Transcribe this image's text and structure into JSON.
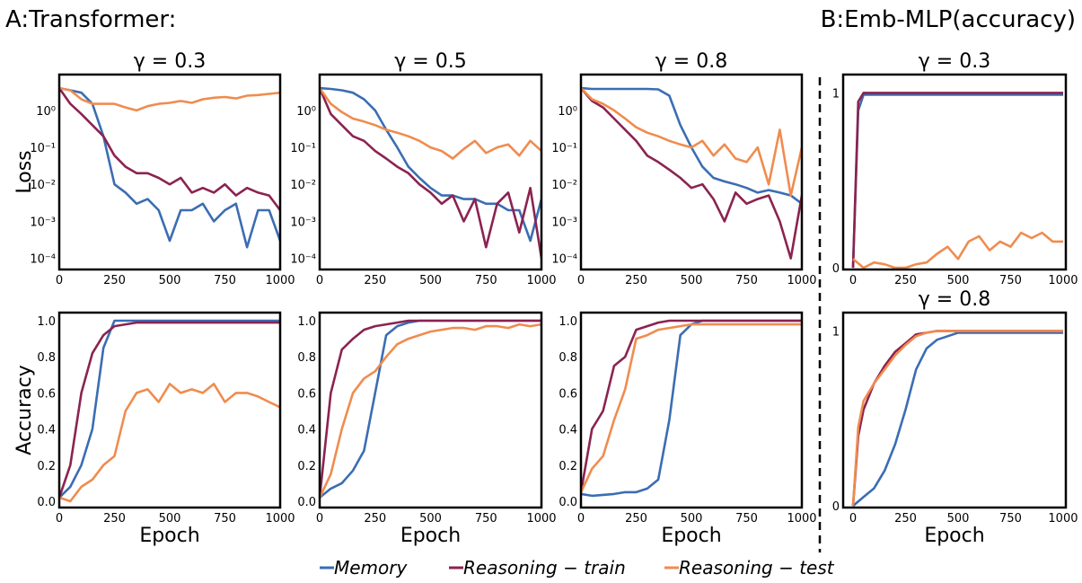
{
  "headers": {
    "a": "A:Transformer:",
    "b": "B:Emb-MLP(accuracy)"
  },
  "colors": {
    "Memory": "#3b6db3",
    "Reasoning − train": "#8b2350",
    "Reasoning − test": "#ef8c4f"
  },
  "legend": [
    "Memory",
    "Reasoning − train",
    "Reasoning − test"
  ],
  "chart_data": [
    {
      "type": "line",
      "title": "γ = 0.3",
      "ylabel": "Loss",
      "xlabel": "",
      "yscale": "log",
      "xlim": [
        0,
        1000
      ],
      "ylim": [
        5e-05,
        9.3
      ],
      "xticks": [
        "0",
        "250",
        "500",
        "750",
        "1000"
      ],
      "yticks": [
        {
          "v": 1,
          "label": "10⁰"
        },
        {
          "v": 0.1,
          "label": "10⁻¹"
        },
        {
          "v": 0.01,
          "label": "10⁻²"
        },
        {
          "v": 0.001,
          "label": "10⁻³"
        },
        {
          "v": 0.0001,
          "label": "10⁻⁴"
        }
      ],
      "series": [
        {
          "name": "Memory",
          "y": [
            4,
            3.5,
            3,
            1.5,
            0.2,
            0.01,
            0.006,
            0.003,
            0.004,
            0.002,
            0.0003,
            0.002,
            0.002,
            0.003,
            0.001,
            0.002,
            0.003,
            0.0002,
            0.002,
            0.002,
            0.0003
          ]
        },
        {
          "name": "Reasoning − train",
          "y": [
            4,
            1.5,
            0.8,
            0.4,
            0.2,
            0.06,
            0.03,
            0.02,
            0.02,
            0.015,
            0.01,
            0.015,
            0.006,
            0.008,
            0.006,
            0.01,
            0.005,
            0.008,
            0.006,
            0.005,
            0.002
          ]
        },
        {
          "name": "Reasoning − test",
          "y": [
            4,
            3.5,
            2,
            1.5,
            1.5,
            1.5,
            1.2,
            1.0,
            1.3,
            1.5,
            1.6,
            1.8,
            1.6,
            2,
            2.2,
            2.3,
            2.1,
            2.5,
            2.6,
            2.8,
            3
          ]
        }
      ]
    },
    {
      "type": "line",
      "title": "γ = 0.5",
      "ylabel": "",
      "xlabel": "",
      "yscale": "log",
      "xlim": [
        0,
        1000
      ],
      "ylim": [
        5e-05,
        9.3
      ],
      "xticks": [
        "0",
        "250",
        "500",
        "750",
        "1000"
      ],
      "yticks": [
        {
          "v": 1,
          "label": "10⁰"
        },
        {
          "v": 0.1,
          "label": "10⁻¹"
        },
        {
          "v": 0.01,
          "label": "10⁻²"
        },
        {
          "v": 0.001,
          "label": "10⁻³"
        },
        {
          "v": 0.0001,
          "label": "10⁻⁴"
        }
      ],
      "series": [
        {
          "name": "Memory",
          "y": [
            4,
            3.8,
            3.5,
            3,
            2,
            1,
            0.3,
            0.1,
            0.03,
            0.015,
            0.008,
            0.005,
            0.005,
            0.004,
            0.004,
            0.003,
            0.003,
            0.002,
            0.002,
            0.0003,
            0.004
          ]
        },
        {
          "name": "Reasoning − train",
          "y": [
            4,
            0.8,
            0.4,
            0.2,
            0.15,
            0.08,
            0.05,
            0.03,
            0.02,
            0.01,
            0.006,
            0.003,
            0.005,
            0.001,
            0.004,
            0.0002,
            0.003,
            0.006,
            0.0005,
            0.008,
            0.0001
          ]
        },
        {
          "name": "Reasoning − test",
          "y": [
            4,
            1.5,
            0.9,
            0.6,
            0.5,
            0.4,
            0.3,
            0.25,
            0.2,
            0.15,
            0.1,
            0.08,
            0.05,
            0.09,
            0.15,
            0.07,
            0.1,
            0.12,
            0.06,
            0.15,
            0.08
          ]
        }
      ]
    },
    {
      "type": "line",
      "title": "γ = 0.8",
      "ylabel": "",
      "xlabel": "",
      "yscale": "log",
      "xlim": [
        0,
        1000
      ],
      "ylim": [
        5e-05,
        9.3
      ],
      "xticks": [
        "0",
        "250",
        "500",
        "750",
        "1000"
      ],
      "yticks": [
        {
          "v": 1,
          "label": "10⁰"
        },
        {
          "v": 0.1,
          "label": "10⁻¹"
        },
        {
          "v": 0.01,
          "label": "10⁻²"
        },
        {
          "v": 0.001,
          "label": "10⁻³"
        },
        {
          "v": 0.0001,
          "label": "10⁻⁴"
        }
      ],
      "series": [
        {
          "name": "Memory",
          "y": [
            4,
            3.8,
            3.8,
            3.8,
            3.8,
            3.8,
            3.8,
            3.7,
            2.5,
            0.4,
            0.1,
            0.03,
            0.015,
            0.012,
            0.01,
            0.008,
            0.006,
            0.007,
            0.006,
            0.005,
            0.003
          ]
        },
        {
          "name": "Reasoning − train",
          "y": [
            4,
            1.8,
            1.2,
            0.6,
            0.3,
            0.15,
            0.06,
            0.04,
            0.025,
            0.015,
            0.008,
            0.01,
            0.004,
            0.001,
            0.006,
            0.003,
            0.004,
            0.005,
            0.001,
            0.0001,
            0.005
          ]
        },
        {
          "name": "Reasoning − test",
          "y": [
            4,
            2,
            1.5,
            1,
            0.6,
            0.35,
            0.25,
            0.2,
            0.15,
            0.12,
            0.1,
            0.15,
            0.06,
            0.12,
            0.05,
            0.04,
            0.1,
            0.01,
            0.3,
            0.005,
            0.1
          ]
        }
      ]
    },
    {
      "type": "line",
      "title": "γ = 0.3",
      "ylabel": "",
      "xlabel": "",
      "yscale": "linear",
      "xlim": [
        -47,
        1013
      ],
      "ylim": [
        -0.01,
        1.105
      ],
      "xticks": [
        "0",
        "250",
        "500",
        "750",
        "1000"
      ],
      "yticks": [
        {
          "v": 0,
          "label": "0"
        },
        {
          "v": 1,
          "label": "1"
        }
      ],
      "series": [
        {
          "name": "Memory",
          "x": [
            0,
            25,
            50,
            100,
            200,
            300,
            400,
            500,
            600,
            700,
            800,
            900,
            1000
          ],
          "y": [
            0,
            0.9,
            0.99,
            0.99,
            0.99,
            0.99,
            0.99,
            0.99,
            0.99,
            0.99,
            0.99,
            0.99,
            0.99
          ]
        },
        {
          "name": "Reasoning − train",
          "x": [
            0,
            25,
            50,
            100,
            200,
            300,
            400,
            500,
            600,
            700,
            800,
            900,
            1000
          ],
          "y": [
            0,
            0.95,
            1,
            1,
            1,
            1,
            1,
            1,
            1,
            1,
            1,
            1,
            1
          ]
        },
        {
          "name": "Reasoning − test",
          "y": [
            0.05,
            0,
            0.03,
            0.02,
            0,
            0,
            0.02,
            0.03,
            0.08,
            0.12,
            0.05,
            0.15,
            0.18,
            0.1,
            0.15,
            0.12,
            0.2,
            0.17,
            0.2,
            0.15,
            0.15
          ]
        }
      ]
    },
    {
      "type": "line",
      "title": "",
      "ylabel": "Accuracy",
      "xlabel": "Epoch",
      "yscale": "linear",
      "xlim": [
        0,
        1000
      ],
      "ylim": [
        -0.035,
        1.045
      ],
      "xticks": [
        "0",
        "250",
        "500",
        "750",
        "1000"
      ],
      "yticks": [
        {
          "v": 0,
          "label": "0.0"
        },
        {
          "v": 0.2,
          "label": "0.2"
        },
        {
          "v": 0.4,
          "label": "0.4"
        },
        {
          "v": 0.6,
          "label": "0.6"
        },
        {
          "v": 0.8,
          "label": "0.8"
        },
        {
          "v": 1,
          "label": "1.0"
        }
      ],
      "series": [
        {
          "name": "Memory",
          "y": [
            0.02,
            0.08,
            0.2,
            0.4,
            0.85,
            1,
            1,
            1,
            1,
            1,
            1,
            1,
            1,
            1,
            1,
            1,
            1,
            1,
            1,
            1,
            1
          ]
        },
        {
          "name": "Reasoning − train",
          "y": [
            0.02,
            0.2,
            0.6,
            0.82,
            0.92,
            0.97,
            0.98,
            0.99,
            0.99,
            0.99,
            0.99,
            0.99,
            0.99,
            0.99,
            0.99,
            0.99,
            0.99,
            0.99,
            0.99,
            0.99,
            0.99
          ]
        },
        {
          "name": "Reasoning − test",
          "y": [
            0.02,
            0,
            0.08,
            0.12,
            0.2,
            0.25,
            0.5,
            0.6,
            0.62,
            0.55,
            0.65,
            0.6,
            0.62,
            0.6,
            0.65,
            0.55,
            0.6,
            0.6,
            0.58,
            0.55,
            0.52
          ]
        }
      ]
    },
    {
      "type": "line",
      "title": "",
      "ylabel": "",
      "xlabel": "Epoch",
      "yscale": "linear",
      "xlim": [
        0,
        1000
      ],
      "ylim": [
        -0.035,
        1.045
      ],
      "xticks": [
        "0",
        "250",
        "500",
        "750",
        "1000"
      ],
      "yticks": [
        {
          "v": 0,
          "label": "0.0"
        },
        {
          "v": 0.2,
          "label": "0.2"
        },
        {
          "v": 0.4,
          "label": "0.4"
        },
        {
          "v": 0.6,
          "label": "0.6"
        },
        {
          "v": 0.8,
          "label": "0.8"
        },
        {
          "v": 1,
          "label": "1.0"
        }
      ],
      "series": [
        {
          "name": "Memory",
          "y": [
            0.02,
            0.07,
            0.1,
            0.17,
            0.28,
            0.6,
            0.92,
            0.97,
            0.99,
            1,
            1,
            1,
            1,
            1,
            1,
            1,
            1,
            1,
            1,
            1,
            1
          ]
        },
        {
          "name": "Reasoning − train",
          "y": [
            0.02,
            0.6,
            0.84,
            0.9,
            0.95,
            0.97,
            0.98,
            0.99,
            1,
            1,
            1,
            1,
            1,
            1,
            1,
            1,
            1,
            1,
            1,
            1,
            1
          ]
        },
        {
          "name": "Reasoning − test",
          "y": [
            0.02,
            0.15,
            0.4,
            0.6,
            0.68,
            0.72,
            0.8,
            0.87,
            0.9,
            0.92,
            0.94,
            0.95,
            0.96,
            0.96,
            0.95,
            0.97,
            0.97,
            0.96,
            0.98,
            0.97,
            0.98
          ]
        }
      ]
    },
    {
      "type": "line",
      "title": "",
      "ylabel": "",
      "xlabel": "Epoch",
      "yscale": "linear",
      "xlim": [
        0,
        1000
      ],
      "ylim": [
        -0.035,
        1.045
      ],
      "xticks": [
        "0",
        "250",
        "500",
        "750",
        "1000"
      ],
      "yticks": [
        {
          "v": 0,
          "label": "0.0"
        },
        {
          "v": 0.2,
          "label": "0.2"
        },
        {
          "v": 0.4,
          "label": "0.4"
        },
        {
          "v": 0.6,
          "label": "0.6"
        },
        {
          "v": 0.8,
          "label": "0.8"
        },
        {
          "v": 1,
          "label": "1.0"
        }
      ],
      "series": [
        {
          "name": "Memory",
          "y": [
            0.04,
            0.03,
            0.035,
            0.04,
            0.05,
            0.05,
            0.07,
            0.12,
            0.45,
            0.92,
            0.98,
            1,
            1,
            1,
            1,
            1,
            1,
            1,
            1,
            1,
            1
          ]
        },
        {
          "name": "Reasoning − train",
          "y": [
            0.05,
            0.4,
            0.5,
            0.75,
            0.8,
            0.95,
            0.97,
            0.99,
            1,
            1,
            1,
            1,
            1,
            1,
            1,
            1,
            1,
            1,
            1,
            1,
            1
          ]
        },
        {
          "name": "Reasoning − test",
          "y": [
            0.05,
            0.18,
            0.25,
            0.45,
            0.62,
            0.9,
            0.92,
            0.95,
            0.96,
            0.97,
            0.98,
            0.98,
            0.98,
            0.98,
            0.98,
            0.98,
            0.98,
            0.98,
            0.98,
            0.98,
            0.98
          ]
        }
      ]
    },
    {
      "type": "line",
      "title": "γ = 0.8",
      "ylabel": "",
      "xlabel": "Epoch",
      "yscale": "linear",
      "xlim": [
        -47,
        1013
      ],
      "ylim": [
        -0.01,
        1.105
      ],
      "xticks": [
        "0",
        "250",
        "500",
        "750",
        "1000"
      ],
      "yticks": [
        {
          "v": 0,
          "label": "0"
        },
        {
          "v": 1,
          "label": "1"
        }
      ],
      "series": [
        {
          "name": "Memory",
          "y": [
            0,
            0.05,
            0.1,
            0.2,
            0.35,
            0.55,
            0.78,
            0.9,
            0.95,
            0.97,
            0.99,
            0.99,
            0.99,
            0.99,
            0.99,
            0.99,
            0.99,
            0.99,
            0.99,
            0.99,
            0.99
          ]
        },
        {
          "name": "Reasoning − train",
          "x": [
            0,
            25,
            50,
            100,
            150,
            200,
            250,
            300,
            350,
            400,
            500,
            600,
            700,
            800,
            900,
            1000
          ],
          "y": [
            0,
            0.4,
            0.55,
            0.7,
            0.8,
            0.88,
            0.93,
            0.98,
            0.99,
            1,
            1,
            1,
            1,
            1,
            1,
            1
          ]
        },
        {
          "name": "Reasoning − test",
          "x": [
            0,
            25,
            50,
            100,
            150,
            200,
            250,
            300,
            350,
            400,
            500,
            600,
            700,
            800,
            900,
            1000
          ],
          "y": [
            0,
            0.45,
            0.6,
            0.7,
            0.78,
            0.86,
            0.92,
            0.97,
            0.99,
            1,
            1,
            1,
            1,
            1,
            1,
            1
          ]
        }
      ]
    }
  ]
}
